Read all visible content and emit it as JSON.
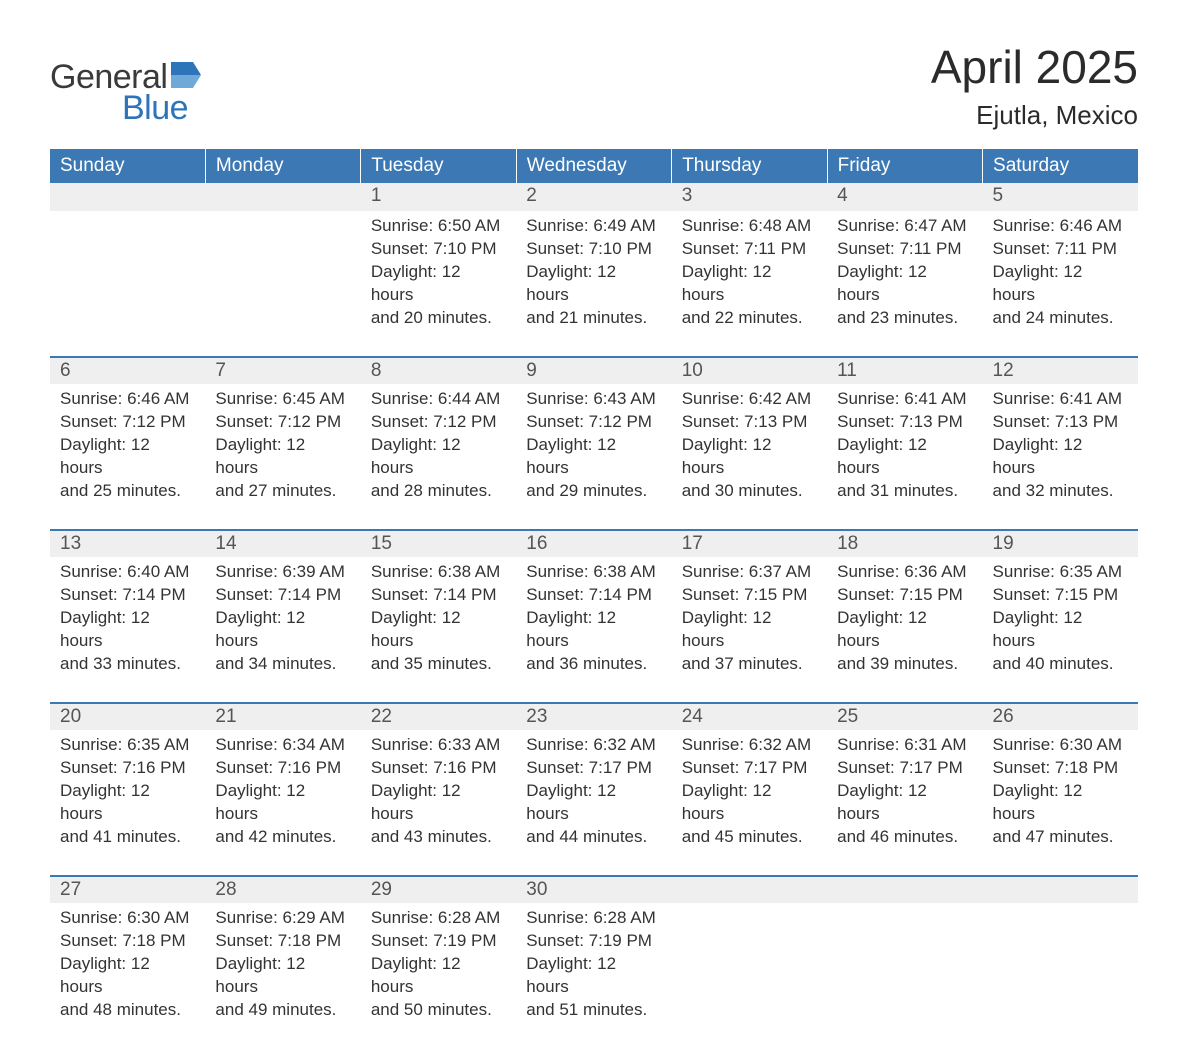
{
  "logo": {
    "word1": "General",
    "word2": "Blue",
    "text_color": "#3a3a3a",
    "accent_color": "#2d74b8"
  },
  "title": "April 2025",
  "location": "Ejutla, Mexico",
  "colors": {
    "header_bg": "#3c78b4",
    "header_text": "#ffffff",
    "daynum_bg": "#efefef",
    "row_divider": "#3c78b4",
    "body_text": "#333333",
    "page_bg": "#ffffff"
  },
  "fonts": {
    "title_size_pt": 35,
    "location_size_pt": 20,
    "header_size_pt": 14,
    "body_size_pt": 13
  },
  "weekdays": [
    "Sunday",
    "Monday",
    "Tuesday",
    "Wednesday",
    "Thursday",
    "Friday",
    "Saturday"
  ],
  "weeks": [
    [
      null,
      null,
      {
        "n": "1",
        "sunrise": "Sunrise: 6:50 AM",
        "sunset": "Sunset: 7:10 PM",
        "day1": "Daylight: 12 hours",
        "day2": "and 20 minutes."
      },
      {
        "n": "2",
        "sunrise": "Sunrise: 6:49 AM",
        "sunset": "Sunset: 7:10 PM",
        "day1": "Daylight: 12 hours",
        "day2": "and 21 minutes."
      },
      {
        "n": "3",
        "sunrise": "Sunrise: 6:48 AM",
        "sunset": "Sunset: 7:11 PM",
        "day1": "Daylight: 12 hours",
        "day2": "and 22 minutes."
      },
      {
        "n": "4",
        "sunrise": "Sunrise: 6:47 AM",
        "sunset": "Sunset: 7:11 PM",
        "day1": "Daylight: 12 hours",
        "day2": "and 23 minutes."
      },
      {
        "n": "5",
        "sunrise": "Sunrise: 6:46 AM",
        "sunset": "Sunset: 7:11 PM",
        "day1": "Daylight: 12 hours",
        "day2": "and 24 minutes."
      }
    ],
    [
      {
        "n": "6",
        "sunrise": "Sunrise: 6:46 AM",
        "sunset": "Sunset: 7:12 PM",
        "day1": "Daylight: 12 hours",
        "day2": "and 25 minutes."
      },
      {
        "n": "7",
        "sunrise": "Sunrise: 6:45 AM",
        "sunset": "Sunset: 7:12 PM",
        "day1": "Daylight: 12 hours",
        "day2": "and 27 minutes."
      },
      {
        "n": "8",
        "sunrise": "Sunrise: 6:44 AM",
        "sunset": "Sunset: 7:12 PM",
        "day1": "Daylight: 12 hours",
        "day2": "and 28 minutes."
      },
      {
        "n": "9",
        "sunrise": "Sunrise: 6:43 AM",
        "sunset": "Sunset: 7:12 PM",
        "day1": "Daylight: 12 hours",
        "day2": "and 29 minutes."
      },
      {
        "n": "10",
        "sunrise": "Sunrise: 6:42 AM",
        "sunset": "Sunset: 7:13 PM",
        "day1": "Daylight: 12 hours",
        "day2": "and 30 minutes."
      },
      {
        "n": "11",
        "sunrise": "Sunrise: 6:41 AM",
        "sunset": "Sunset: 7:13 PM",
        "day1": "Daylight: 12 hours",
        "day2": "and 31 minutes."
      },
      {
        "n": "12",
        "sunrise": "Sunrise: 6:41 AM",
        "sunset": "Sunset: 7:13 PM",
        "day1": "Daylight: 12 hours",
        "day2": "and 32 minutes."
      }
    ],
    [
      {
        "n": "13",
        "sunrise": "Sunrise: 6:40 AM",
        "sunset": "Sunset: 7:14 PM",
        "day1": "Daylight: 12 hours",
        "day2": "and 33 minutes."
      },
      {
        "n": "14",
        "sunrise": "Sunrise: 6:39 AM",
        "sunset": "Sunset: 7:14 PM",
        "day1": "Daylight: 12 hours",
        "day2": "and 34 minutes."
      },
      {
        "n": "15",
        "sunrise": "Sunrise: 6:38 AM",
        "sunset": "Sunset: 7:14 PM",
        "day1": "Daylight: 12 hours",
        "day2": "and 35 minutes."
      },
      {
        "n": "16",
        "sunrise": "Sunrise: 6:38 AM",
        "sunset": "Sunset: 7:14 PM",
        "day1": "Daylight: 12 hours",
        "day2": "and 36 minutes."
      },
      {
        "n": "17",
        "sunrise": "Sunrise: 6:37 AM",
        "sunset": "Sunset: 7:15 PM",
        "day1": "Daylight: 12 hours",
        "day2": "and 37 minutes."
      },
      {
        "n": "18",
        "sunrise": "Sunrise: 6:36 AM",
        "sunset": "Sunset: 7:15 PM",
        "day1": "Daylight: 12 hours",
        "day2": "and 39 minutes."
      },
      {
        "n": "19",
        "sunrise": "Sunrise: 6:35 AM",
        "sunset": "Sunset: 7:15 PM",
        "day1": "Daylight: 12 hours",
        "day2": "and 40 minutes."
      }
    ],
    [
      {
        "n": "20",
        "sunrise": "Sunrise: 6:35 AM",
        "sunset": "Sunset: 7:16 PM",
        "day1": "Daylight: 12 hours",
        "day2": "and 41 minutes."
      },
      {
        "n": "21",
        "sunrise": "Sunrise: 6:34 AM",
        "sunset": "Sunset: 7:16 PM",
        "day1": "Daylight: 12 hours",
        "day2": "and 42 minutes."
      },
      {
        "n": "22",
        "sunrise": "Sunrise: 6:33 AM",
        "sunset": "Sunset: 7:16 PM",
        "day1": "Daylight: 12 hours",
        "day2": "and 43 minutes."
      },
      {
        "n": "23",
        "sunrise": "Sunrise: 6:32 AM",
        "sunset": "Sunset: 7:17 PM",
        "day1": "Daylight: 12 hours",
        "day2": "and 44 minutes."
      },
      {
        "n": "24",
        "sunrise": "Sunrise: 6:32 AM",
        "sunset": "Sunset: 7:17 PM",
        "day1": "Daylight: 12 hours",
        "day2": "and 45 minutes."
      },
      {
        "n": "25",
        "sunrise": "Sunrise: 6:31 AM",
        "sunset": "Sunset: 7:17 PM",
        "day1": "Daylight: 12 hours",
        "day2": "and 46 minutes."
      },
      {
        "n": "26",
        "sunrise": "Sunrise: 6:30 AM",
        "sunset": "Sunset: 7:18 PM",
        "day1": "Daylight: 12 hours",
        "day2": "and 47 minutes."
      }
    ],
    [
      {
        "n": "27",
        "sunrise": "Sunrise: 6:30 AM",
        "sunset": "Sunset: 7:18 PM",
        "day1": "Daylight: 12 hours",
        "day2": "and 48 minutes."
      },
      {
        "n": "28",
        "sunrise": "Sunrise: 6:29 AM",
        "sunset": "Sunset: 7:18 PM",
        "day1": "Daylight: 12 hours",
        "day2": "and 49 minutes."
      },
      {
        "n": "29",
        "sunrise": "Sunrise: 6:28 AM",
        "sunset": "Sunset: 7:19 PM",
        "day1": "Daylight: 12 hours",
        "day2": "and 50 minutes."
      },
      {
        "n": "30",
        "sunrise": "Sunrise: 6:28 AM",
        "sunset": "Sunset: 7:19 PM",
        "day1": "Daylight: 12 hours",
        "day2": "and 51 minutes."
      },
      null,
      null,
      null
    ]
  ]
}
